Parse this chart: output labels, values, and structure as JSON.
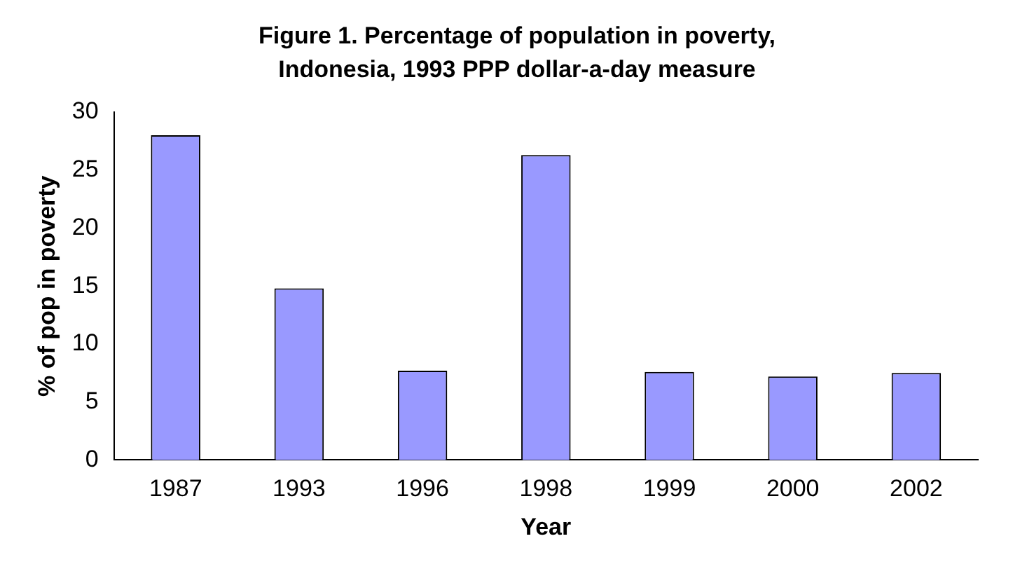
{
  "chart_data": {
    "type": "bar",
    "title": "Figure 1. Percentage of population in poverty, Indonesia, 1993 PPP dollar-a-day measure",
    "xlabel": "Year",
    "ylabel": "% of pop in poverty",
    "categories": [
      "1987",
      "1993",
      "1996",
      "1998",
      "1999",
      "2000",
      "2002"
    ],
    "values": [
      28.0,
      14.8,
      7.7,
      26.3,
      7.6,
      7.2,
      7.5
    ],
    "color": "#9999ff",
    "ylim": [
      0,
      30
    ],
    "yticks": [
      0,
      5,
      10,
      15,
      20,
      25,
      30
    ],
    "grid": false,
    "legend": false
  }
}
